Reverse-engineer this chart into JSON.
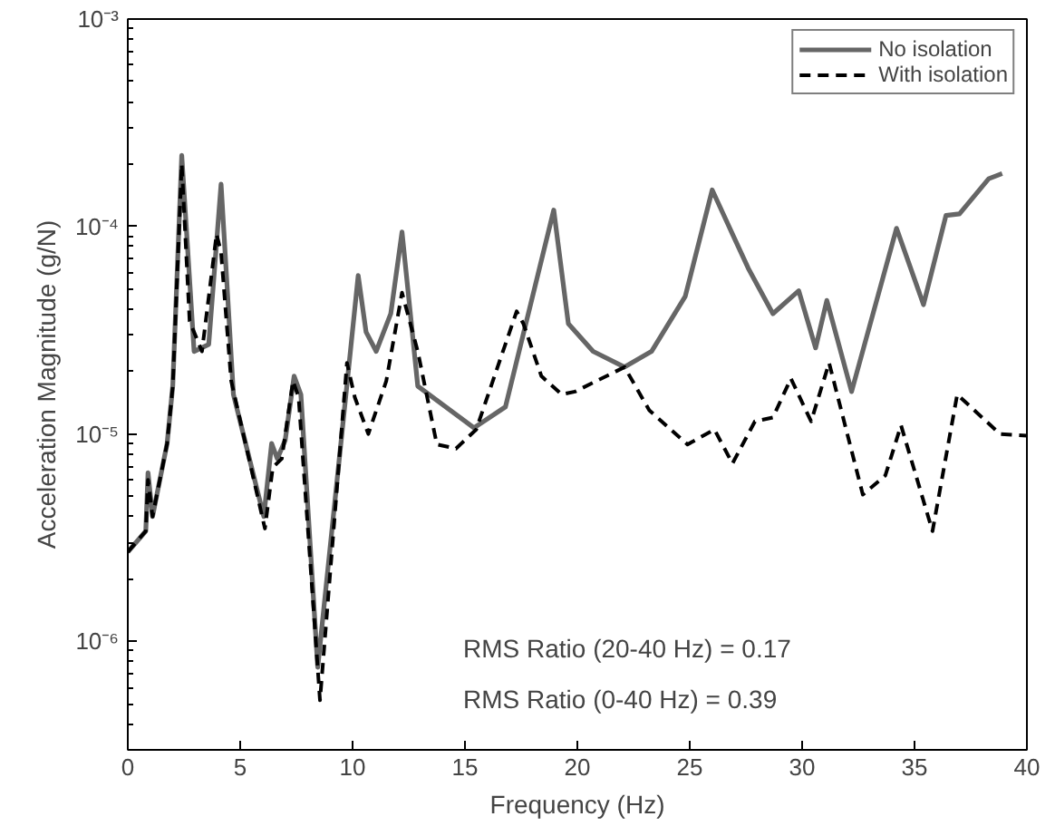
{
  "chart_data": {
    "type": "line",
    "xlabel": "Frequency (Hz)",
    "ylabel": "Acceleration Magnitude (g/N)",
    "log": "y",
    "grid": false,
    "legend": "top right",
    "marker": "none",
    "xlim": [
      0,
      40
    ],
    "xticks": [
      0,
      5,
      10,
      15,
      20,
      25,
      30,
      35,
      40
    ],
    "ylim": [
      3e-07,
      0.001
    ],
    "yticks": [
      {
        "value": 1e-06,
        "label": "10⁻⁶"
      },
      {
        "value": 1e-05,
        "label": "10⁻⁵"
      },
      {
        "value": 0.0001,
        "label": "10⁻⁴"
      },
      {
        "value": 0.001,
        "label": "10⁻³"
      }
    ],
    "annotations": [
      "RMS Ratio (20-40 Hz) = 0.17",
      "RMS Ratio (0-40 Hz) = 0.39"
    ],
    "series": [
      {
        "name": "No isolation",
        "color": "#666666",
        "line_style": "solid",
        "x": [
          0,
          0.8,
          0.9,
          1.1,
          1.75,
          2.0,
          2.4,
          2.95,
          3.6,
          4.15,
          4.7,
          6.05,
          6.4,
          6.65,
          7.0,
          7.4,
          7.7,
          8.45,
          9.85,
          10.25,
          10.6,
          11.05,
          11.7,
          12.2,
          12.9,
          15.4,
          16.8,
          18.95,
          19.6,
          20.7,
          22.1,
          23.3,
          24.8,
          26.0,
          26.9,
          27.6,
          28.7,
          29.85,
          30.6,
          31.1,
          32.2,
          34.2,
          35.4,
          36.4,
          37.0,
          38.3,
          38.9
        ],
        "values": [
          2.7e-06,
          3.4e-06,
          6.5e-06,
          4e-06,
          9e-06,
          1.7e-05,
          0.00022,
          2.5e-05,
          2.7e-05,
          0.00016,
          1.55e-05,
          4e-06,
          9e-06,
          7.6e-06,
          9.3e-06,
          1.9e-05,
          1.55e-05,
          7.5e-07,
          2.2e-05,
          5.8e-05,
          3.1e-05,
          2.5e-05,
          3.8e-05,
          9.4e-05,
          1.7e-05,
          1.07e-05,
          1.35e-05,
          0.00012,
          3.4e-05,
          2.5e-05,
          2.1e-05,
          2.5e-05,
          4.6e-05,
          0.00015,
          9.2e-05,
          6.3e-05,
          3.8e-05,
          4.9e-05,
          2.6e-05,
          4.4e-05,
          1.6e-05,
          9.8e-05,
          4.2e-05,
          0.000113,
          0.000115,
          0.00017,
          0.00018
        ]
      },
      {
        "name": "With isolation",
        "color": "#000000",
        "line_style": "dashed",
        "x": [
          0,
          0.8,
          0.9,
          1.1,
          1.75,
          2.0,
          2.4,
          2.75,
          3.3,
          3.95,
          4.15,
          4.6,
          6.1,
          6.45,
          6.85,
          7.35,
          7.6,
          8.55,
          9.75,
          10.1,
          10.7,
          11.5,
          12.2,
          12.9,
          13.75,
          14.6,
          15.5,
          17.3,
          17.6,
          18.4,
          19.3,
          19.9,
          22.1,
          23.2,
          24.9,
          26.1,
          26.9,
          27.9,
          28.7,
          29.5,
          30.4,
          31.2,
          32.7,
          33.7,
          34.4,
          35.8,
          36.9,
          38.8,
          40
        ],
        "values": [
          2.7e-06,
          3.4e-06,
          6e-06,
          4e-06,
          9e-06,
          1.7e-05,
          0.0002,
          3.5e-05,
          2.5e-05,
          9.2e-05,
          7.5e-05,
          1.8e-05,
          3.5e-06,
          6.9e-06,
          7.6e-06,
          1.8e-05,
          1.5e-05,
          5.2e-07,
          2.2e-05,
          1.5e-05,
          1e-05,
          1.8e-05,
          4.8e-05,
          2.5e-05,
          8.9e-06,
          8.5e-06,
          1.05e-05,
          3.9e-05,
          3.4e-05,
          1.9e-05,
          1.55e-05,
          1.6e-05,
          2.1e-05,
          1.3e-05,
          8.9e-06,
          1.05e-05,
          7.2e-06,
          1.15e-05,
          1.2e-05,
          1.85e-05,
          1.15e-05,
          2.2e-05,
          5.1e-06,
          6.3e-06,
          1.1e-05,
          3.4e-06,
          1.55e-05,
          1e-05,
          9.8e-06
        ]
      }
    ]
  }
}
